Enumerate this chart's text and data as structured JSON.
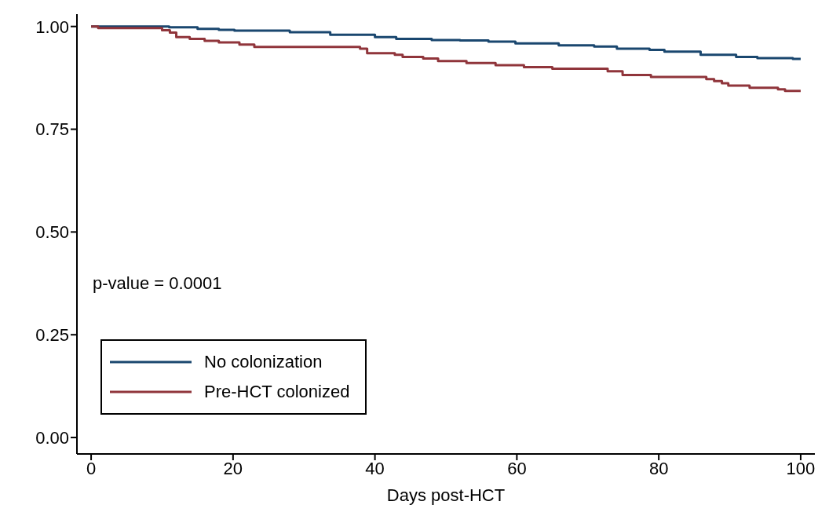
{
  "chart_data": {
    "type": "step",
    "xlabel": "Days post-HCT",
    "xlim": [
      -2,
      102
    ],
    "xticks": [
      0,
      20,
      40,
      60,
      80,
      100
    ],
    "ylim": [
      -0.04,
      1.03
    ],
    "yticks": [
      {
        "value": 0,
        "label": "0.00"
      },
      {
        "value": 0.25,
        "label": "0.25"
      },
      {
        "value": 0.5,
        "label": "0.50"
      },
      {
        "value": 0.75,
        "label": "0.75"
      },
      {
        "value": 1,
        "label": "1.00"
      }
    ],
    "grid": false,
    "legend": "bottom left",
    "line_style": "solid",
    "marker": "none",
    "annotations": [
      "p-value = 0.0001"
    ],
    "series": [
      {
        "name": "No colonization",
        "color": "#1a476f",
        "x": [
          0,
          11,
          15,
          18,
          20.2,
          28,
          33.7,
          40,
          43,
          48,
          52,
          56,
          59.8,
          65.9,
          70.9,
          74.1,
          78.7,
          80.8,
          85.9,
          90.9,
          93.9,
          98.9,
          100
        ],
        "values": [
          1,
          0.998,
          0.994,
          0.992,
          0.99,
          0.986,
          0.98,
          0.974,
          0.97,
          0.967,
          0.966,
          0.963,
          0.959,
          0.954,
          0.951,
          0.946,
          0.943,
          0.939,
          0.931,
          0.926,
          0.923,
          0.921,
          0.921
        ]
      },
      {
        "name": "Pre-HCT colonized",
        "color": "#90353b",
        "x": [
          0,
          1,
          10,
          11.1,
          12,
          13.9,
          16,
          18,
          20.9,
          23,
          37.9,
          38.9,
          42.8,
          43.9,
          46.8,
          48.9,
          52.9,
          57,
          61,
          65,
          72.8,
          74.9,
          78.9,
          86.7,
          87.8,
          88.9,
          89.8,
          92.8,
          96.8,
          97.8,
          100
        ],
        "values": [
          1,
          0.996,
          0.991,
          0.985,
          0.974,
          0.97,
          0.965,
          0.961,
          0.956,
          0.95,
          0.946,
          0.935,
          0.931,
          0.926,
          0.922,
          0.916,
          0.911,
          0.906,
          0.901,
          0.897,
          0.891,
          0.882,
          0.877,
          0.872,
          0.867,
          0.862,
          0.856,
          0.851,
          0.847,
          0.843,
          0.843
        ]
      }
    ]
  }
}
